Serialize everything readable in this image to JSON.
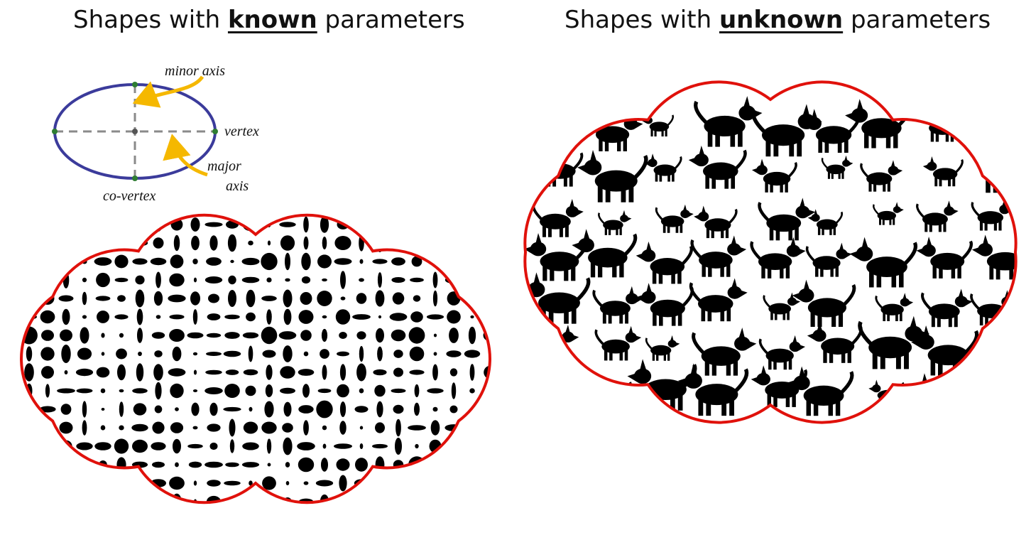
{
  "titles": {
    "left": {
      "prefix": "Shapes with ",
      "emphasis": "known",
      "suffix": " parameters"
    },
    "right": {
      "prefix": "Shapes with ",
      "emphasis": "unknown",
      "suffix": " parameters"
    }
  },
  "ellipse_diagram": {
    "labels": {
      "minor_axis": "minor axis",
      "vertex": "vertex",
      "major_line1": "major",
      "major_line2": "axis",
      "co_vertex": "co-vertex"
    },
    "colors": {
      "ellipse": "#3b3b9b",
      "axes": "#8a8a8a",
      "points": "#2e7d32",
      "arrows": "#f5b800"
    }
  },
  "clouds": {
    "left": {
      "content": "black ellipses of varying sizes and orientations",
      "border_color": "#e0110b"
    },
    "right": {
      "content": "black dog silhouettes",
      "border_color": "#e0110b"
    }
  }
}
